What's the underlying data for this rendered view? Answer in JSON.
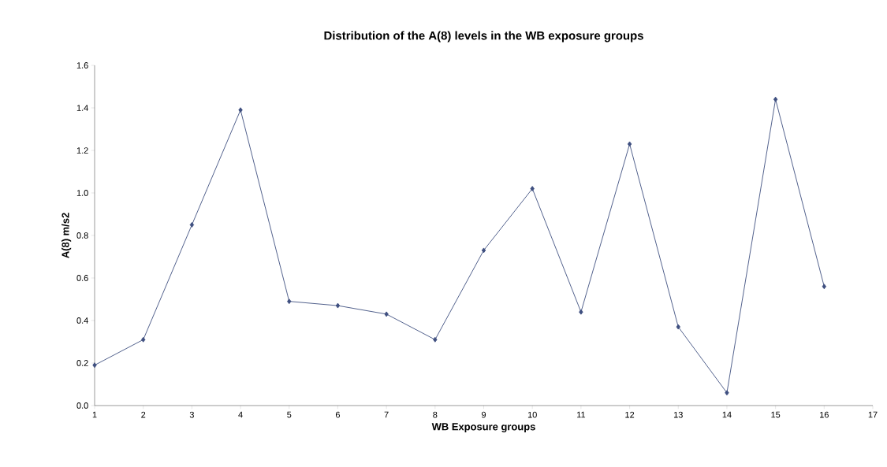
{
  "chart_data": {
    "type": "line",
    "title": "Distribution of the A(8) levels in the WB exposure groups",
    "xlabel": "WB Exposure groups",
    "ylabel": "A(8) m/s2",
    "x": [
      1,
      2,
      3,
      4,
      5,
      6,
      7,
      8,
      9,
      10,
      11,
      12,
      13,
      14,
      15,
      16
    ],
    "series": [
      {
        "color": "#3f4f80",
        "values": [
          0.19,
          0.31,
          0.85,
          1.39,
          0.49,
          0.47,
          0.43,
          0.31,
          0.73,
          1.02,
          0.44,
          1.23,
          0.37,
          0.06,
          1.44,
          0.56
        ]
      }
    ],
    "xlim": [
      1,
      17
    ],
    "xticks": [
      1,
      2,
      3,
      4,
      5,
      6,
      7,
      8,
      9,
      10,
      11,
      12,
      13,
      14,
      15,
      16,
      17
    ],
    "ylim": [
      0,
      1.6
    ],
    "yticks": [
      {
        "value": 0,
        "label": "0.0"
      },
      {
        "value": 0.2,
        "label": "0.2"
      },
      {
        "value": 0.4,
        "label": "0.4"
      },
      {
        "value": 0.6,
        "label": "0.6"
      },
      {
        "value": 0.8,
        "label": "0.8"
      },
      {
        "value": 1.0,
        "label": "1.0"
      },
      {
        "value": 1.2,
        "label": "1.2"
      },
      {
        "value": 1.4,
        "label": "1.4"
      },
      {
        "value": 1.6,
        "label": "1.6"
      }
    ],
    "grid": false,
    "marker": "diamond",
    "line_style": "solid"
  }
}
